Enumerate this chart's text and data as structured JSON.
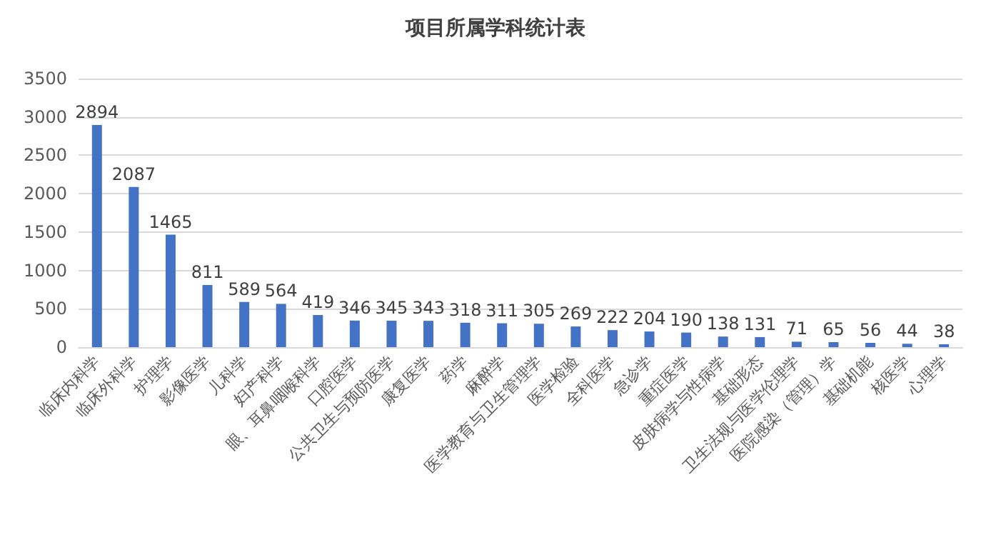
{
  "chart_data": {
    "type": "bar",
    "title": "项目所属学科统计表",
    "categories": [
      "临床内科学",
      "临床外科学",
      "护理学",
      "影像医学",
      "儿科学",
      "妇产科学",
      "眼、耳鼻咽喉科学",
      "口腔医学",
      "公共卫生与预防医学",
      "康复医学",
      "药学",
      "麻醉学",
      "医学教育与卫生管理学",
      "医学检验",
      "全科医学",
      "急诊学",
      "重症医学",
      "皮肤病学与性病学",
      "基础形态",
      "卫生法规与医学伦理学",
      "医院感染（管理）学",
      "基础机能",
      "核医学",
      "心理学"
    ],
    "values": [
      2894,
      2087,
      1465,
      811,
      589,
      564,
      419,
      346,
      345,
      343,
      318,
      311,
      305,
      269,
      222,
      204,
      190,
      138,
      131,
      71,
      65,
      56,
      44,
      38
    ],
    "color": "#4472c4",
    "ylim": [
      0,
      3500
    ],
    "yticks": [
      0,
      500,
      1000,
      1500,
      2000,
      2500,
      3000,
      3500
    ],
    "grid": "y",
    "data_labels": true
  }
}
